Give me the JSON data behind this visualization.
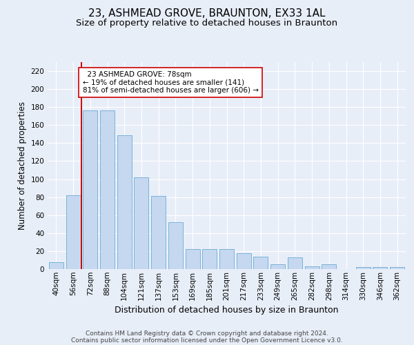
{
  "title_line1": "23, ASHMEAD GROVE, BRAUNTON, EX33 1AL",
  "title_line2": "Size of property relative to detached houses in Braunton",
  "xlabel": "Distribution of detached houses by size in Braunton",
  "ylabel": "Number of detached properties",
  "footer_line1": "Contains HM Land Registry data © Crown copyright and database right 2024.",
  "footer_line2": "Contains public sector information licensed under the Open Government Licence v3.0.",
  "bar_labels": [
    "40sqm",
    "56sqm",
    "72sqm",
    "88sqm",
    "104sqm",
    "121sqm",
    "137sqm",
    "153sqm",
    "169sqm",
    "185sqm",
    "201sqm",
    "217sqm",
    "233sqm",
    "249sqm",
    "265sqm",
    "282sqm",
    "298sqm",
    "314sqm",
    "330sqm",
    "346sqm",
    "362sqm"
  ],
  "bar_values": [
    8,
    82,
    176,
    176,
    149,
    102,
    81,
    52,
    22,
    22,
    22,
    18,
    14,
    5,
    13,
    3,
    5,
    0,
    2,
    2,
    2
  ],
  "bar_color": "#c5d8f0",
  "bar_edge_color": "#6aaad4",
  "annotation_text": "  23 ASHMEAD GROVE: 78sqm\n← 19% of detached houses are smaller (141)\n81% of semi-detached houses are larger (606) →",
  "annotation_box_color": "#ffffff",
  "annotation_box_edge": "#cc0000",
  "vline_color": "#cc0000",
  "ylim": [
    0,
    230
  ],
  "yticks": [
    0,
    20,
    40,
    60,
    80,
    100,
    120,
    140,
    160,
    180,
    200,
    220
  ],
  "background_color": "#e8eef8",
  "axes_background": "#e8eef8",
  "grid_color": "#ffffff",
  "title1_fontsize": 11,
  "title2_fontsize": 9.5,
  "xlabel_fontsize": 9,
  "ylabel_fontsize": 8.5,
  "tick_fontsize": 7.5,
  "footer_fontsize": 6.5,
  "annotation_fontsize": 7.5,
  "vline_x_index": 1.5
}
